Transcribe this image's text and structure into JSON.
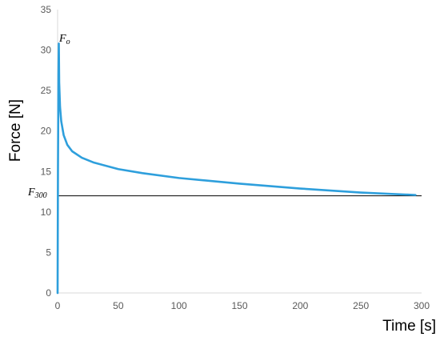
{
  "chart_data": {
    "type": "line",
    "title": "",
    "xlabel": "Time [s]",
    "ylabel": "Force [N]",
    "xlim": [
      0,
      300
    ],
    "ylim": [
      0,
      35
    ],
    "x_ticks": [
      0,
      50,
      100,
      150,
      200,
      250,
      300
    ],
    "y_ticks": [
      0,
      5,
      10,
      15,
      20,
      25,
      30,
      35
    ],
    "grid": false,
    "legend": "none",
    "series": [
      {
        "color": "#2e9fdc",
        "points": [
          [
            0,
            0
          ],
          [
            0.3,
            15
          ],
          [
            0.7,
            27
          ],
          [
            1,
            30.8
          ],
          [
            1.3,
            26
          ],
          [
            2,
            23
          ],
          [
            3,
            21.2
          ],
          [
            5,
            19.5
          ],
          [
            8,
            18.3
          ],
          [
            12,
            17.5
          ],
          [
            20,
            16.7
          ],
          [
            30,
            16.1
          ],
          [
            50,
            15.3
          ],
          [
            70,
            14.8
          ],
          [
            100,
            14.2
          ],
          [
            150,
            13.5
          ],
          [
            200,
            12.9
          ],
          [
            250,
            12.4
          ],
          [
            295,
            12.1
          ]
        ]
      }
    ],
    "reference_line": {
      "y": 12.0,
      "x_range": [
        0,
        300
      ],
      "color": "#000000"
    },
    "annotations": {
      "peak_main": "F",
      "peak_sub": "o",
      "end_main": "F",
      "end_sub": "300"
    }
  }
}
